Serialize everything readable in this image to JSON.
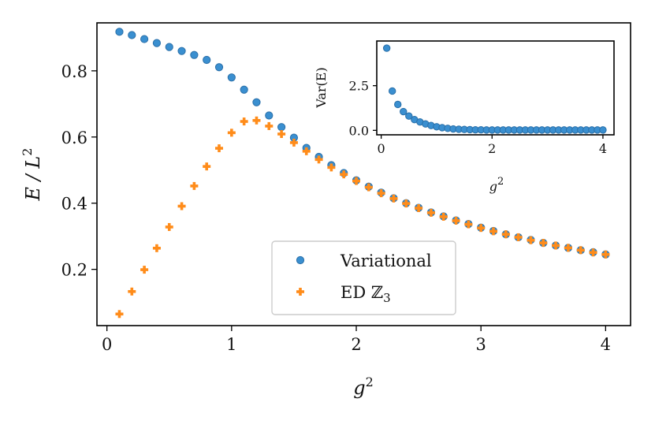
{
  "chart_data": [
    {
      "type": "scatter",
      "panel": "main",
      "xlabel": "g²",
      "ylabel": "E / L²",
      "xlim": [
        -0.08,
        4.2
      ],
      "ylim": [
        0.03,
        0.945
      ],
      "xticks": [
        "0",
        "1",
        "2",
        "3",
        "4"
      ],
      "yticks": [
        "0.2",
        "0.4",
        "0.6",
        "0.8"
      ],
      "legend_position": "lower-center",
      "series": [
        {
          "name": "Variational",
          "marker": "circle",
          "color": "#3a8fd0",
          "x": [
            0.1,
            0.2,
            0.3,
            0.4,
            0.5,
            0.6,
            0.7,
            0.8,
            0.9,
            1.0,
            1.1,
            1.2,
            1.3,
            1.4,
            1.5,
            1.6,
            1.7,
            1.8,
            1.9,
            2.0,
            2.1,
            2.2,
            2.3,
            2.4,
            2.5,
            2.6,
            2.7,
            2.8,
            2.9,
            3.0,
            3.1,
            3.2,
            3.3,
            3.4,
            3.5,
            3.6,
            3.7,
            3.8,
            3.9,
            4.0
          ],
          "y": [
            0.918,
            0.908,
            0.896,
            0.884,
            0.872,
            0.86,
            0.848,
            0.833,
            0.811,
            0.78,
            0.743,
            0.705,
            0.665,
            0.63,
            0.598,
            0.567,
            0.54,
            0.515,
            0.491,
            0.469,
            0.45,
            0.432,
            0.415,
            0.4,
            0.386,
            0.372,
            0.36,
            0.348,
            0.337,
            0.326,
            0.316,
            0.306,
            0.297,
            0.289,
            0.28,
            0.272,
            0.265,
            0.258,
            0.252,
            0.245
          ]
        },
        {
          "name": "ED ℤ3",
          "marker": "plus",
          "color": "#ff8c1a",
          "x": [
            0.1,
            0.2,
            0.3,
            0.4,
            0.5,
            0.6,
            0.7,
            0.8,
            0.9,
            1.0,
            1.1,
            1.2,
            1.3,
            1.4,
            1.5,
            1.6,
            1.7,
            1.8,
            1.9,
            2.0,
            2.1,
            2.2,
            2.3,
            2.4,
            2.5,
            2.6,
            2.7,
            2.8,
            2.9,
            3.0,
            3.1,
            3.2,
            3.3,
            3.4,
            3.5,
            3.6,
            3.7,
            3.8,
            3.9,
            4.0
          ],
          "y": [
            0.065,
            0.133,
            0.199,
            0.264,
            0.328,
            0.391,
            0.452,
            0.511,
            0.566,
            0.613,
            0.647,
            0.65,
            0.633,
            0.609,
            0.583,
            0.557,
            0.532,
            0.508,
            0.487,
            0.467,
            0.448,
            0.43,
            0.414,
            0.399,
            0.385,
            0.371,
            0.359,
            0.347,
            0.336,
            0.325,
            0.315,
            0.306,
            0.297,
            0.288,
            0.28,
            0.272,
            0.265,
            0.258,
            0.251,
            0.245
          ]
        }
      ]
    },
    {
      "type": "scatter",
      "panel": "inset",
      "xlabel": "g²",
      "ylabel": "Var(E)",
      "xlim": [
        -0.08,
        4.2
      ],
      "ylim": [
        -0.25,
        5.0
      ],
      "xticks": [
        "0",
        "2",
        "4"
      ],
      "yticks": [
        "0.0",
        "2.5"
      ],
      "series": [
        {
          "name": "Var(E)",
          "marker": "circle",
          "color": "#3a8fd0",
          "x": [
            0.1,
            0.2,
            0.3,
            0.4,
            0.5,
            0.6,
            0.7,
            0.8,
            0.9,
            1.0,
            1.1,
            1.2,
            1.3,
            1.4,
            1.5,
            1.6,
            1.7,
            1.8,
            1.9,
            2.0,
            2.1,
            2.2,
            2.3,
            2.4,
            2.5,
            2.6,
            2.7,
            2.8,
            2.9,
            3.0,
            3.1,
            3.2,
            3.3,
            3.4,
            3.5,
            3.6,
            3.7,
            3.8,
            3.9,
            4.0
          ],
          "y": [
            4.6,
            2.2,
            1.45,
            1.05,
            0.8,
            0.6,
            0.47,
            0.36,
            0.27,
            0.2,
            0.15,
            0.11,
            0.08,
            0.06,
            0.05,
            0.04,
            0.03,
            0.03,
            0.02,
            0.02,
            0.02,
            0.02,
            0.02,
            0.02,
            0.02,
            0.02,
            0.02,
            0.02,
            0.02,
            0.02,
            0.02,
            0.02,
            0.02,
            0.02,
            0.02,
            0.02,
            0.02,
            0.02,
            0.02,
            0.02
          ]
        }
      ]
    }
  ]
}
